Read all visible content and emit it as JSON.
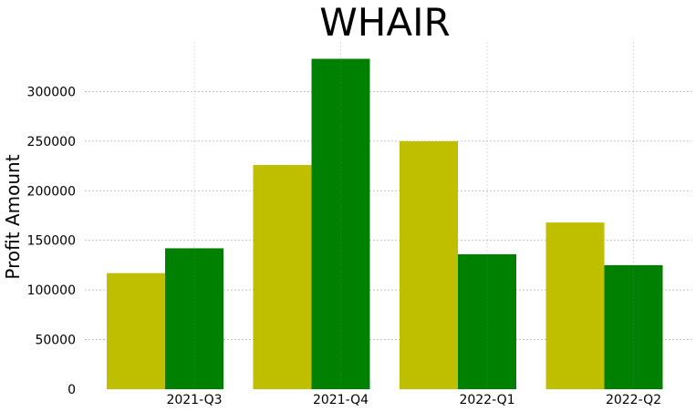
{
  "chart_data": {
    "type": "bar",
    "title": "WHAIR",
    "xlabel": "",
    "ylabel": "Profit Amount",
    "categories": [
      "2021-Q3",
      "2021-Q4",
      "2022-Q1",
      "2022-Q2"
    ],
    "series": [
      {
        "values": [
          117000,
          226000,
          250000,
          168000
        ],
        "color": "#bfbf00"
      },
      {
        "values": [
          142000,
          333000,
          136000,
          125000
        ],
        "color": "#008000"
      }
    ],
    "ylim": [
      0,
      350000
    ],
    "yticks": [
      0,
      50000,
      100000,
      150000,
      200000,
      250000,
      300000
    ],
    "ytick_labels": [
      "0",
      "50000",
      "100000",
      "150000",
      "200000",
      "250000",
      "300000"
    ],
    "grid": true,
    "legend": "none"
  }
}
